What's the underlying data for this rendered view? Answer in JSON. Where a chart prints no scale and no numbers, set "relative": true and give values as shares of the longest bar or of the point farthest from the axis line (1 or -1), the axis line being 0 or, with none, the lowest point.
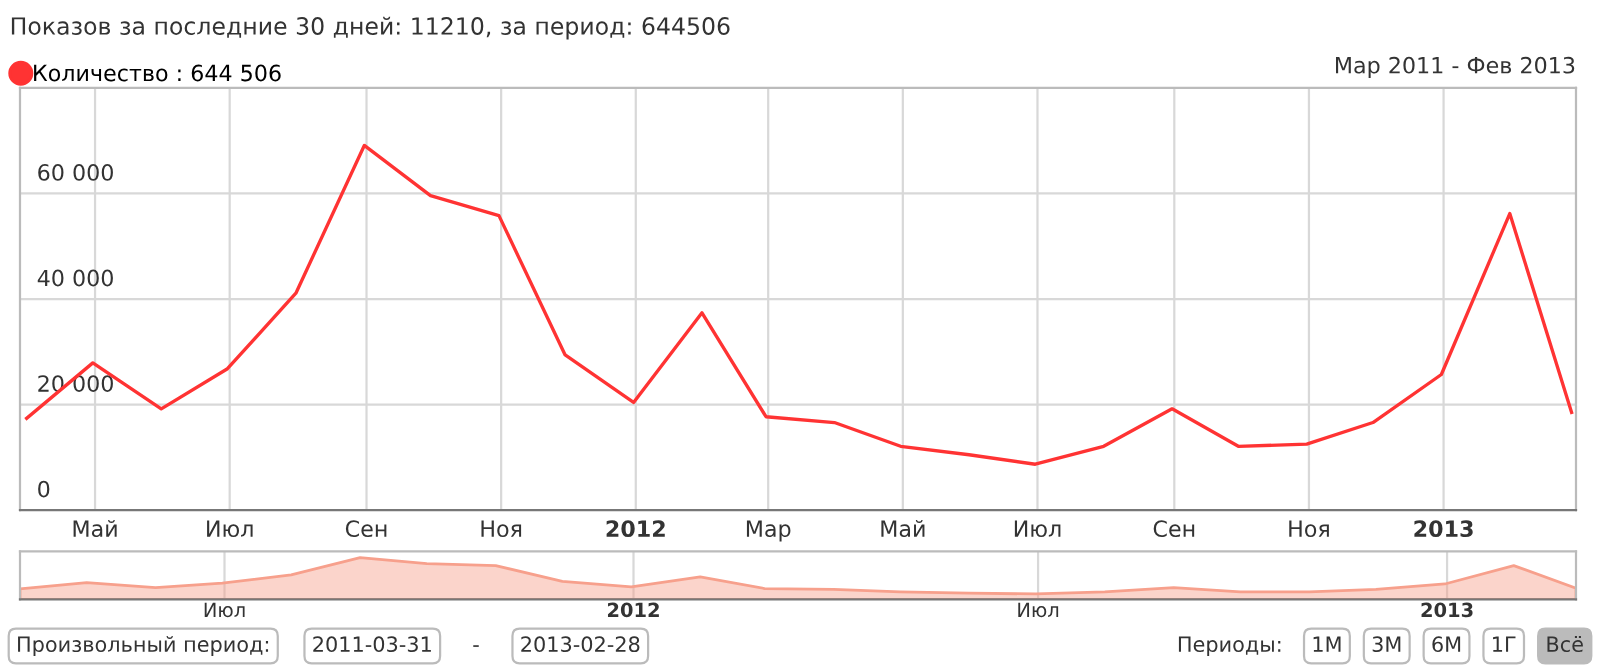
{
  "chart_data": [
    {
      "type": "line",
      "title": "Показов за последние 30 дней: 11210, за период: 644506",
      "x": [
        "2011-03-31",
        "2011-04-30",
        "2011-05-31",
        "2011-06-30",
        "2011-07-31",
        "2011-08-31",
        "2011-09-30",
        "2011-10-31",
        "2011-11-30",
        "2011-12-31",
        "2012-01-31",
        "2012-02-29",
        "2012-03-31",
        "2012-04-30",
        "2012-05-31",
        "2012-06-30",
        "2012-07-31",
        "2012-08-31",
        "2012-09-30",
        "2012-10-31",
        "2012-11-30",
        "2012-12-31",
        "2013-01-31",
        "2013-02-28"
      ],
      "series": [
        {
          "name": "Количество : 644 506",
          "color": "#ff3333",
          "values": [
            17400,
            27900,
            19200,
            26800,
            41100,
            69100,
            59600,
            55800,
            29400,
            20400,
            37400,
            17700,
            16600,
            12100,
            10500,
            8700,
            12100,
            19200,
            12100,
            12500,
            16600,
            25700,
            56200,
            18500
          ]
        }
      ],
      "xlim": [
        "2011-03-28",
        "2013-03-02"
      ],
      "xticks": [
        {
          "value": "2011-05-01",
          "label": "Май"
        },
        {
          "value": "2011-07-01",
          "label": "Июл"
        },
        {
          "value": "2011-09-01",
          "label": "Сен"
        },
        {
          "value": "2011-11-01",
          "label": "Ноя"
        },
        {
          "value": "2012-01-01",
          "label": "2012"
        },
        {
          "value": "2012-03-01",
          "label": "Мар"
        },
        {
          "value": "2012-05-01",
          "label": "Май"
        },
        {
          "value": "2012-07-01",
          "label": "Июл"
        },
        {
          "value": "2012-09-01",
          "label": "Сен"
        },
        {
          "value": "2012-11-01",
          "label": "Ноя"
        },
        {
          "value": "2013-01-01",
          "label": "2013"
        }
      ],
      "ylim": [
        0,
        80000
      ],
      "yticks": [
        {
          "value": 0,
          "label": "0"
        },
        {
          "value": 20000,
          "label": "20 000"
        },
        {
          "value": 40000,
          "label": "40 000"
        },
        {
          "value": 60000,
          "label": "60 000"
        }
      ],
      "grid": true,
      "legend": "top left",
      "marker": "none",
      "annotations": [
        "Мар 2011 - Фев 2013"
      ]
    },
    {
      "type": "area",
      "relative": true,
      "x": [
        "2011-03-31",
        "2011-04-30",
        "2011-05-31",
        "2011-06-30",
        "2011-07-31",
        "2011-08-31",
        "2011-09-30",
        "2011-10-31",
        "2011-11-30",
        "2011-12-31",
        "2012-01-31",
        "2012-02-29",
        "2012-03-31",
        "2012-04-30",
        "2012-05-31",
        "2012-06-30",
        "2012-07-31",
        "2012-08-31",
        "2012-09-30",
        "2012-10-31",
        "2012-11-30",
        "2012-12-31",
        "2013-01-31",
        "2013-02-28"
      ],
      "series": [
        {
          "color": "#f7a08c",
          "values": [
            0.25,
            0.4,
            0.28,
            0.39,
            0.59,
            1,
            0.86,
            0.81,
            0.43,
            0.3,
            0.54,
            0.26,
            0.24,
            0.18,
            0.15,
            0.13,
            0.18,
            0.28,
            0.18,
            0.18,
            0.24,
            0.37,
            0.81,
            0.27
          ]
        }
      ],
      "xlim": [
        "2011-03-31",
        "2013-02-28"
      ],
      "xticks": [
        {
          "value": "2011-07-01",
          "label": "Июл"
        },
        {
          "value": "2012-01-01",
          "label": "2012"
        },
        {
          "value": "2012-07-01",
          "label": "Июл"
        },
        {
          "value": "2013-01-01",
          "label": "2013"
        }
      ],
      "grid": "x",
      "annotations": [
        "Произвольный период:",
        "2011-03-31",
        "-",
        "2013-02-28",
        "Периоды:",
        "1М",
        "3М",
        "6М",
        "1Г",
        "Всё"
      ]
    }
  ]
}
